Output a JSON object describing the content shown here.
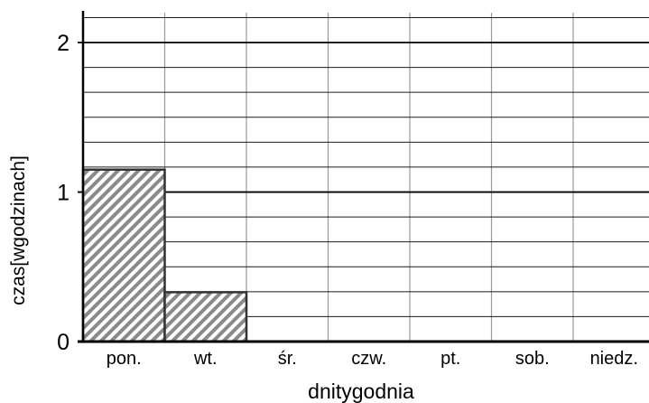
{
  "chart_data": {
    "type": "bar",
    "title": "",
    "xlabel": "dnitygodnia",
    "ylabel": "czas[wgodzinach]",
    "categories": [
      "pon.",
      "wt.",
      "śr.",
      "czw.",
      "pt.",
      "sob.",
      "niedz."
    ],
    "values": [
      1.15,
      0.33,
      0,
      0,
      0,
      0,
      0
    ],
    "ylim": [
      0,
      2.2
    ],
    "yticks": [
      0,
      1,
      2
    ],
    "minor_grid_step": 0.1667,
    "grid": true,
    "bar_fill": "diagonal-hatch",
    "colors": {
      "grid_major": "#000000",
      "grid_minor": "#1a1a1a",
      "grid_vertical": "#999999",
      "hatch": "#8a8a8a",
      "bar_edge": "#333333"
    }
  }
}
